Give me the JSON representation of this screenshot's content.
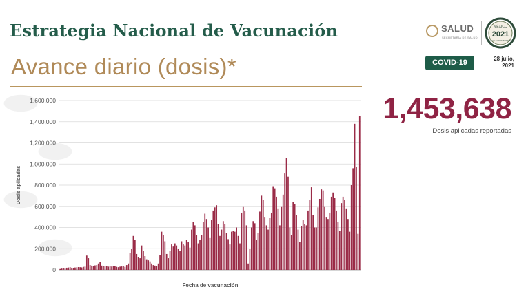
{
  "header": {
    "title": "Estrategia Nacional de Vacunación",
    "subtitle": "Avance diario (dosis)*",
    "logo_text": "SALUD",
    "logo_subtext": "SECRETARÍA DE SALUD",
    "year_logo_top": "MÉXICO",
    "year_logo_year": "2021",
    "year_logo_bottom": "AÑO DE LA INDEPENDENCIA",
    "badge": "COVID-19",
    "date_line1": "28 julio,",
    "date_line2": "2021"
  },
  "summary": {
    "value": "1,453,638",
    "label": "Dosis aplicadas reportadas"
  },
  "colors": {
    "bar": "#9a2b47",
    "title": "#245c4a",
    "subtitle": "#b08a58",
    "accent": "#8f2344",
    "badge": "#1e5c48"
  },
  "chart_data": {
    "type": "bar",
    "title": "",
    "xlabel": "Fecha de vacunación",
    "ylabel": "Dosis aplicadas",
    "ylim": [
      0,
      1600000
    ],
    "yticks": [
      0,
      200000,
      400000,
      600000,
      800000,
      1000000,
      1200000,
      1400000,
      1600000
    ],
    "ytick_labels": [
      "0",
      "200,000",
      "400,000",
      "600,000",
      "800,000",
      "1,000,000",
      "1,200,000",
      "1,400,000",
      "1,600,000"
    ],
    "grid": true,
    "values": [
      8000,
      12000,
      15000,
      18000,
      20000,
      22000,
      25000,
      20000,
      18000,
      22000,
      24000,
      26000,
      25000,
      23000,
      28000,
      30000,
      135000,
      110000,
      45000,
      40000,
      38000,
      42000,
      45000,
      60000,
      75000,
      40000,
      35000,
      32000,
      36000,
      30000,
      33000,
      31000,
      35000,
      38000,
      28000,
      25000,
      30000,
      32000,
      34000,
      28000,
      45000,
      60000,
      160000,
      200000,
      320000,
      280000,
      150000,
      120000,
      110000,
      230000,
      180000,
      130000,
      100000,
      90000,
      80000,
      60000,
      45000,
      40000,
      38000,
      60000,
      140000,
      360000,
      330000,
      270000,
      150000,
      110000,
      180000,
      240000,
      220000,
      250000,
      230000,
      200000,
      180000,
      270000,
      240000,
      230000,
      280000,
      260000,
      210000,
      380000,
      450000,
      420000,
      330000,
      250000,
      280000,
      330000,
      450000,
      530000,
      480000,
      400000,
      300000,
      470000,
      560000,
      590000,
      610000,
      430000,
      320000,
      380000,
      460000,
      430000,
      350000,
      290000,
      240000,
      360000,
      370000,
      360000,
      400000,
      320000,
      250000,
      540000,
      600000,
      560000,
      420000,
      60000,
      200000,
      400000,
      460000,
      440000,
      280000,
      350000,
      550000,
      700000,
      660000,
      500000,
      420000,
      380000,
      490000,
      540000,
      790000,
      770000,
      690000,
      580000,
      420000,
      600000,
      710000,
      910000,
      1060000,
      880000,
      400000,
      330000,
      640000,
      620000,
      520000,
      380000,
      260000,
      410000,
      470000,
      430000,
      420000,
      560000,
      660000,
      780000,
      520000,
      400000,
      400000,
      590000,
      670000,
      760000,
      750000,
      600000,
      500000,
      480000,
      540000,
      690000,
      730000,
      680000,
      560000,
      450000,
      370000,
      630000,
      690000,
      660000,
      580000,
      480000,
      360000,
      800000,
      960000,
      1380000,
      970000,
      340000,
      1453638
    ]
  }
}
